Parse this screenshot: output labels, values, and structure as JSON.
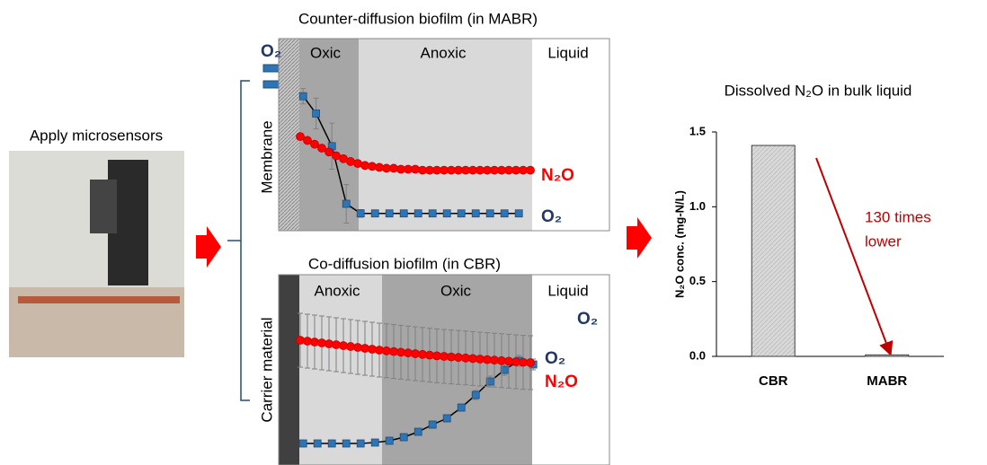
{
  "left_title": "Apply microsensors",
  "chart_data": [
    {
      "type": "profile",
      "title": "Counter-diffusion biofilm (in MABR)",
      "side_label": "Membrane",
      "inlet_label": "O₂",
      "zones": [
        "Oxic",
        "Anoxic",
        "Liquid"
      ],
      "xlim": [
        0,
        23
      ],
      "ylim": [
        0,
        1
      ],
      "series": [
        {
          "name": "O₂",
          "color": "#2e75b6",
          "label_color": "#1f3864",
          "marker": "square",
          "line": true,
          "x": [
            1.7,
            2.6,
            3.7,
            4.7,
            5.7,
            6.7,
            7.7,
            8.7,
            9.7,
            10.7,
            11.7,
            12.7,
            13.7,
            14.7,
            15.7,
            16.7
          ],
          "values": [
            0.7,
            0.61,
            0.44,
            0.14,
            0.09,
            0.09,
            0.09,
            0.09,
            0.09,
            0.09,
            0.09,
            0.09,
            0.09,
            0.09,
            0.09,
            0.09
          ],
          "errors": [
            0.04,
            0.08,
            0.12,
            0.1,
            0.02,
            0,
            0,
            0,
            0,
            0,
            0,
            0,
            0,
            0,
            0,
            0
          ]
        },
        {
          "name": "N₂O",
          "color": "#ff0000",
          "label_color": "#ff0000",
          "marker": "circle",
          "line": false,
          "x": [
            1.5,
            2,
            2.5,
            3,
            3.5,
            4,
            4.5,
            5,
            5.5,
            6,
            6.5,
            7,
            7.5,
            8,
            8.5,
            9,
            9.5,
            10,
            10.5,
            11,
            11.5,
            12,
            12.5,
            13,
            13.5,
            14,
            14.5,
            15,
            15.5,
            16,
            16.5,
            17,
            17.5
          ],
          "values": [
            0.49,
            0.47,
            0.45,
            0.43,
            0.41,
            0.39,
            0.375,
            0.36,
            0.35,
            0.34,
            0.335,
            0.33,
            0.325,
            0.325,
            0.32,
            0.32,
            0.32,
            0.315,
            0.315,
            0.315,
            0.315,
            0.315,
            0.315,
            0.315,
            0.315,
            0.315,
            0.315,
            0.315,
            0.315,
            0.315,
            0.315,
            0.315,
            0.315
          ]
        }
      ]
    },
    {
      "type": "profile",
      "title": "Co-diffusion biofilm (in CBR)",
      "side_label": "Carrier material",
      "inlet_label": "O₂",
      "zones": [
        "Anoxic",
        "Oxic",
        "Liquid"
      ],
      "xlim": [
        0,
        23
      ],
      "ylim": [
        0,
        1
      ],
      "series": [
        {
          "name": "O₂",
          "color": "#2e75b6",
          "label_color": "#1f3864",
          "marker": "square",
          "line": true,
          "x": [
            1.7,
            2.7,
            3.7,
            4.7,
            5.7,
            6.7,
            7.7,
            8.7,
            9.7,
            10.7,
            11.7,
            12.7,
            13.7,
            14.7,
            15.7,
            16.7,
            17.7
          ],
          "values": [
            0.06,
            0.06,
            0.06,
            0.06,
            0.06,
            0.065,
            0.075,
            0.095,
            0.125,
            0.165,
            0.2,
            0.26,
            0.33,
            0.405,
            0.47,
            0.52,
            0.5
          ],
          "errors": [
            0.01,
            0.01,
            0.01,
            0.01,
            0.01,
            0.01,
            0.01,
            0.01,
            0.015,
            0.02,
            0.02,
            0.02,
            0.025,
            0.03,
            0.03,
            0.03,
            0.03
          ]
        },
        {
          "name": "N₂O",
          "color": "#ff0000",
          "label_color": "#ff0000",
          "marker": "circle",
          "line": false,
          "x": [
            1.5,
            2,
            2.5,
            3,
            3.5,
            4,
            4.5,
            5,
            5.5,
            6,
            6.5,
            7,
            7.5,
            8,
            8.5,
            9,
            9.5,
            10,
            10.5,
            11,
            11.5,
            12,
            12.5,
            13,
            13.5,
            14,
            14.5,
            15,
            15.5,
            16,
            16.5,
            17,
            17.5
          ],
          "values": [
            0.635,
            0.63,
            0.625,
            0.62,
            0.615,
            0.61,
            0.605,
            0.6,
            0.595,
            0.59,
            0.585,
            0.58,
            0.576,
            0.572,
            0.568,
            0.564,
            0.56,
            0.556,
            0.552,
            0.548,
            0.545,
            0.542,
            0.539,
            0.536,
            0.533,
            0.53,
            0.527,
            0.524,
            0.521,
            0.518,
            0.515,
            0.512,
            0.51
          ],
          "errors": [
            0.15,
            0.15,
            0.15,
            0.15,
            0.15,
            0.15,
            0.15,
            0.15,
            0.15,
            0.15,
            0.15,
            0.15,
            0.15,
            0.15,
            0.15,
            0.15,
            0.15,
            0.15,
            0.15,
            0.15,
            0.15,
            0.15,
            0.15,
            0.15,
            0.15,
            0.15,
            0.15,
            0.15,
            0.15,
            0.15,
            0.15,
            0.15,
            0.15
          ]
        }
      ]
    },
    {
      "type": "bar",
      "title": "Dissolved N₂O in bulk liquid",
      "y_label": "N₂O conc. (mg-N/L)",
      "categories": [
        "CBR",
        "MABR"
      ],
      "values": [
        1.41,
        0.01
      ],
      "color": "#d9d9d9",
      "ylim": [
        0,
        1.5
      ],
      "yticks": [
        {
          "value": 0,
          "label": "0.0"
        },
        {
          "value": 0.5,
          "label": "0.5"
        },
        {
          "value": 1,
          "label": "1.0"
        },
        {
          "value": 1.5,
          "label": "1.5"
        }
      ],
      "annotation": [
        "130 times",
        "lower"
      ]
    }
  ]
}
